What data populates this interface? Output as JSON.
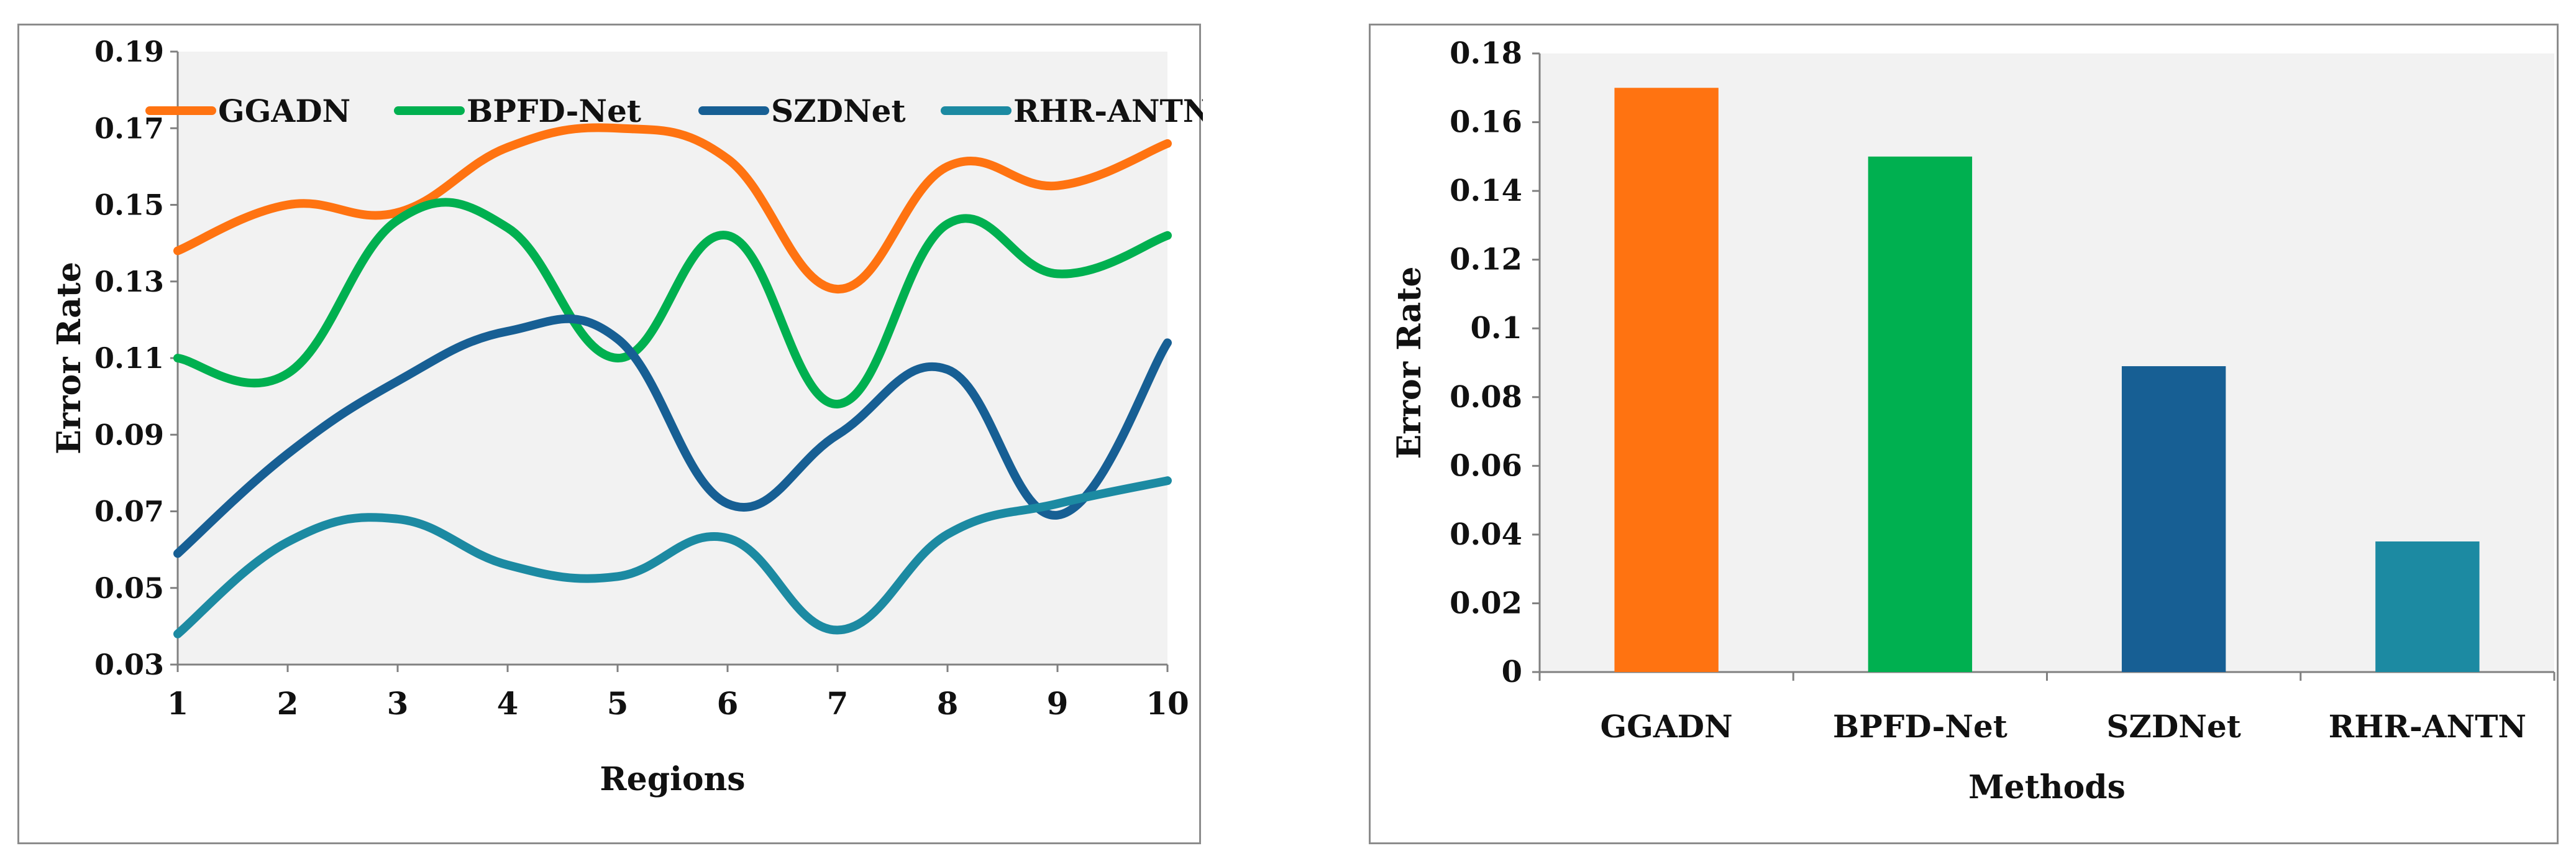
{
  "colors": {
    "GGADN": "#ff7311",
    "BPFD-Net": "#00b050",
    "SZDNet": "#175f94",
    "RHR-ANTN": "#1c8aa2",
    "plot_bg": "#f2f2f2",
    "axis": "#808080"
  },
  "chart_data": [
    {
      "type": "line",
      "title": "",
      "xlabel": "Regions",
      "ylabel": "Error Rate",
      "x": [
        1,
        2,
        3,
        4,
        5,
        6,
        7,
        8,
        9,
        10
      ],
      "x_tick_labels": [
        "1",
        "2",
        "3",
        "4",
        "5",
        "6",
        "7",
        "8",
        "9",
        "10"
      ],
      "ylim": [
        0.03,
        0.19
      ],
      "y_ticks": [
        0.03,
        0.05,
        0.07,
        0.09,
        0.11,
        0.13,
        0.15,
        0.17,
        0.19
      ],
      "y_tick_labels": [
        "0.03",
        "0.05",
        "0.07",
        "0.09",
        "0.11",
        "0.13",
        "0.15",
        "0.17",
        "0.19"
      ],
      "grid": false,
      "legend_position": "top",
      "series": [
        {
          "name": "GGADN",
          "values": [
            0.138,
            0.15,
            0.148,
            0.165,
            0.17,
            0.162,
            0.128,
            0.16,
            0.155,
            0.166
          ]
        },
        {
          "name": "BPFD-Net",
          "values": [
            0.11,
            0.106,
            0.146,
            0.144,
            0.11,
            0.142,
            0.098,
            0.145,
            0.132,
            0.142
          ]
        },
        {
          "name": "SZDNet",
          "values": [
            0.059,
            0.085,
            0.104,
            0.117,
            0.115,
            0.072,
            0.09,
            0.107,
            0.069,
            0.114
          ]
        },
        {
          "name": "RHR-ANTN",
          "values": [
            0.038,
            0.062,
            0.068,
            0.056,
            0.053,
            0.063,
            0.039,
            0.064,
            0.072,
            0.078
          ]
        }
      ]
    },
    {
      "type": "bar",
      "title": "",
      "xlabel": "Methods",
      "ylabel": "Error Rate",
      "categories": [
        "GGADN",
        "BPFD-Net",
        "SZDNet",
        "RHR-ANTN"
      ],
      "values": [
        0.17,
        0.15,
        0.089,
        0.038
      ],
      "ylim": [
        0,
        0.18
      ],
      "y_ticks": [
        0,
        0.02,
        0.04,
        0.06,
        0.08,
        0.1,
        0.12,
        0.14,
        0.16,
        0.18
      ],
      "y_tick_labels": [
        "0",
        "0.02",
        "0.04",
        "0.06",
        "0.08",
        "0.1",
        "0.12",
        "0.14",
        "0.16",
        "0.18"
      ],
      "grid": false,
      "legend_position": "none"
    }
  ]
}
